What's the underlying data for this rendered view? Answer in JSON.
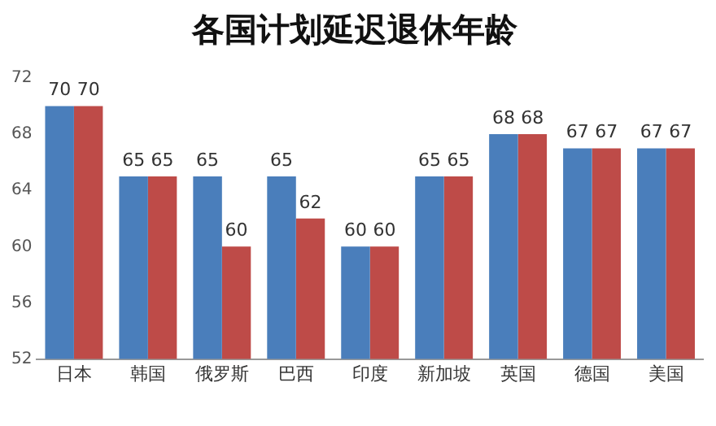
{
  "chart_data": {
    "type": "bar",
    "title": "各国计划延迟退休年龄",
    "categories": [
      "日本",
      "韩国",
      "俄罗斯",
      "巴西",
      "印度",
      "新加坡",
      "英国",
      "德国",
      "美国"
    ],
    "series": [
      {
        "color": "#4a7ebb",
        "values": [
          70,
          65,
          65,
          65,
          60,
          65,
          68,
          67,
          67
        ]
      },
      {
        "color": "#be4b48",
        "values": [
          70,
          65,
          60,
          62,
          60,
          65,
          68,
          67,
          67
        ]
      }
    ],
    "ylim": [
      52,
      72
    ],
    "yticks": [
      52,
      56,
      60,
      64,
      68,
      72
    ],
    "grid": false,
    "legend": false,
    "data_labels": true
  }
}
